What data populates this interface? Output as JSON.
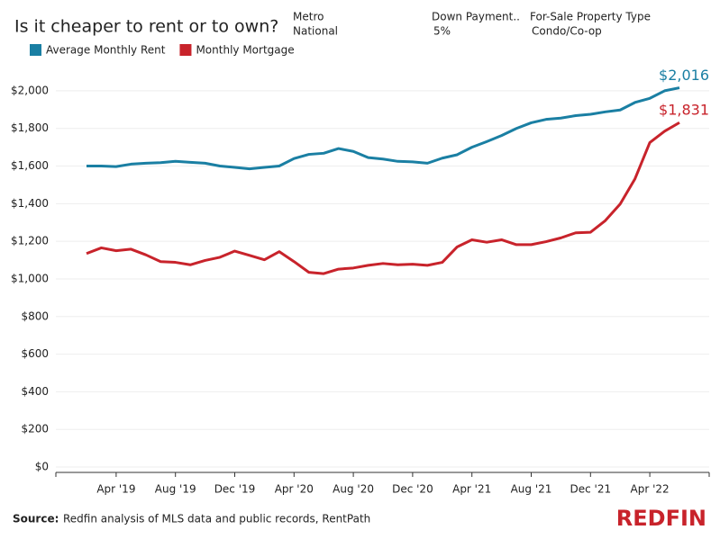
{
  "chart_data": {
    "type": "line",
    "title": "Is it cheaper to rent or to own?",
    "filters": [
      {
        "label": "Metro",
        "value": "National"
      },
      {
        "label": "Down Payment..",
        "value": "5%"
      },
      {
        "label": "For-Sale Property Type",
        "value": "Condo/Co-op"
      }
    ],
    "categories": [
      null,
      null,
      "Apr '19",
      null,
      null,
      null,
      "Aug '19",
      null,
      null,
      null,
      "Dec '19",
      null,
      null,
      null,
      "Apr '20",
      null,
      null,
      null,
      "Aug '20",
      null,
      null,
      null,
      "Dec '20",
      null,
      null,
      null,
      "Apr '21",
      null,
      null,
      null,
      "Aug '21",
      null,
      null,
      null,
      "Dec '21",
      null,
      null,
      null,
      "Apr '22",
      null,
      null
    ],
    "series": [
      {
        "name": "Average Monthly Rent",
        "color": "#1a7fa3",
        "values": [
          1600,
          1600,
          1597,
          1610,
          1615,
          1618,
          1625,
          1620,
          1615,
          1600,
          1593,
          1585,
          1593,
          1600,
          1640,
          1662,
          1668,
          1693,
          1678,
          1645,
          1637,
          1625,
          1622,
          1615,
          1642,
          1660,
          1700,
          1730,
          1762,
          1800,
          1830,
          1848,
          1855,
          1868,
          1875,
          1888,
          1898,
          1938,
          1960,
          2000,
          2016
        ],
        "value_labels": [
          null,
          null,
          null,
          null,
          null,
          null,
          null,
          null,
          null,
          null,
          null,
          null,
          null,
          null,
          null,
          null,
          null,
          null,
          null,
          null,
          null,
          null,
          null,
          null,
          null,
          null,
          null,
          null,
          null,
          null,
          null,
          null,
          null,
          null,
          null,
          null,
          null,
          null,
          null,
          null,
          "$2,016"
        ]
      },
      {
        "name": "Monthly Mortgage",
        "color": "#c8232b",
        "values": [
          1135,
          1165,
          1150,
          1158,
          1128,
          1092,
          1088,
          1075,
          1098,
          1115,
          1148,
          1125,
          1102,
          1145,
          1092,
          1035,
          1028,
          1052,
          1058,
          1072,
          1082,
          1075,
          1078,
          1072,
          1088,
          1170,
          1208,
          1195,
          1208,
          1182,
          1182,
          1198,
          1218,
          1245,
          1248,
          1310,
          1398,
          1532,
          1725,
          1785,
          1831
        ],
        "value_labels": [
          null,
          null,
          null,
          null,
          null,
          null,
          null,
          null,
          null,
          null,
          null,
          null,
          null,
          null,
          null,
          null,
          null,
          null,
          null,
          null,
          null,
          null,
          null,
          null,
          null,
          null,
          null,
          null,
          null,
          null,
          null,
          null,
          null,
          null,
          null,
          null,
          null,
          null,
          null,
          null,
          "$1,831"
        ]
      }
    ],
    "ylim": [
      0,
      2100
    ],
    "yticks": [
      {
        "value": 0,
        "label": "$0"
      },
      {
        "value": 200,
        "label": "$200"
      },
      {
        "value": 400,
        "label": "$400"
      },
      {
        "value": 600,
        "label": "$600"
      },
      {
        "value": 800,
        "label": "$800"
      },
      {
        "value": 1000,
        "label": "$1,000"
      },
      {
        "value": 1200,
        "label": "$1,200"
      },
      {
        "value": 1400,
        "label": "$1,400"
      },
      {
        "value": 1600,
        "label": "$1,600"
      },
      {
        "value": 1800,
        "label": "$1,800"
      },
      {
        "value": 2000,
        "label": "$2,000"
      }
    ],
    "grid": true,
    "legend": "top-left",
    "source": {
      "label": "Source:",
      "text": "Redfin analysis of MLS data and public records, RentPath"
    },
    "logo": "REDFIN"
  }
}
